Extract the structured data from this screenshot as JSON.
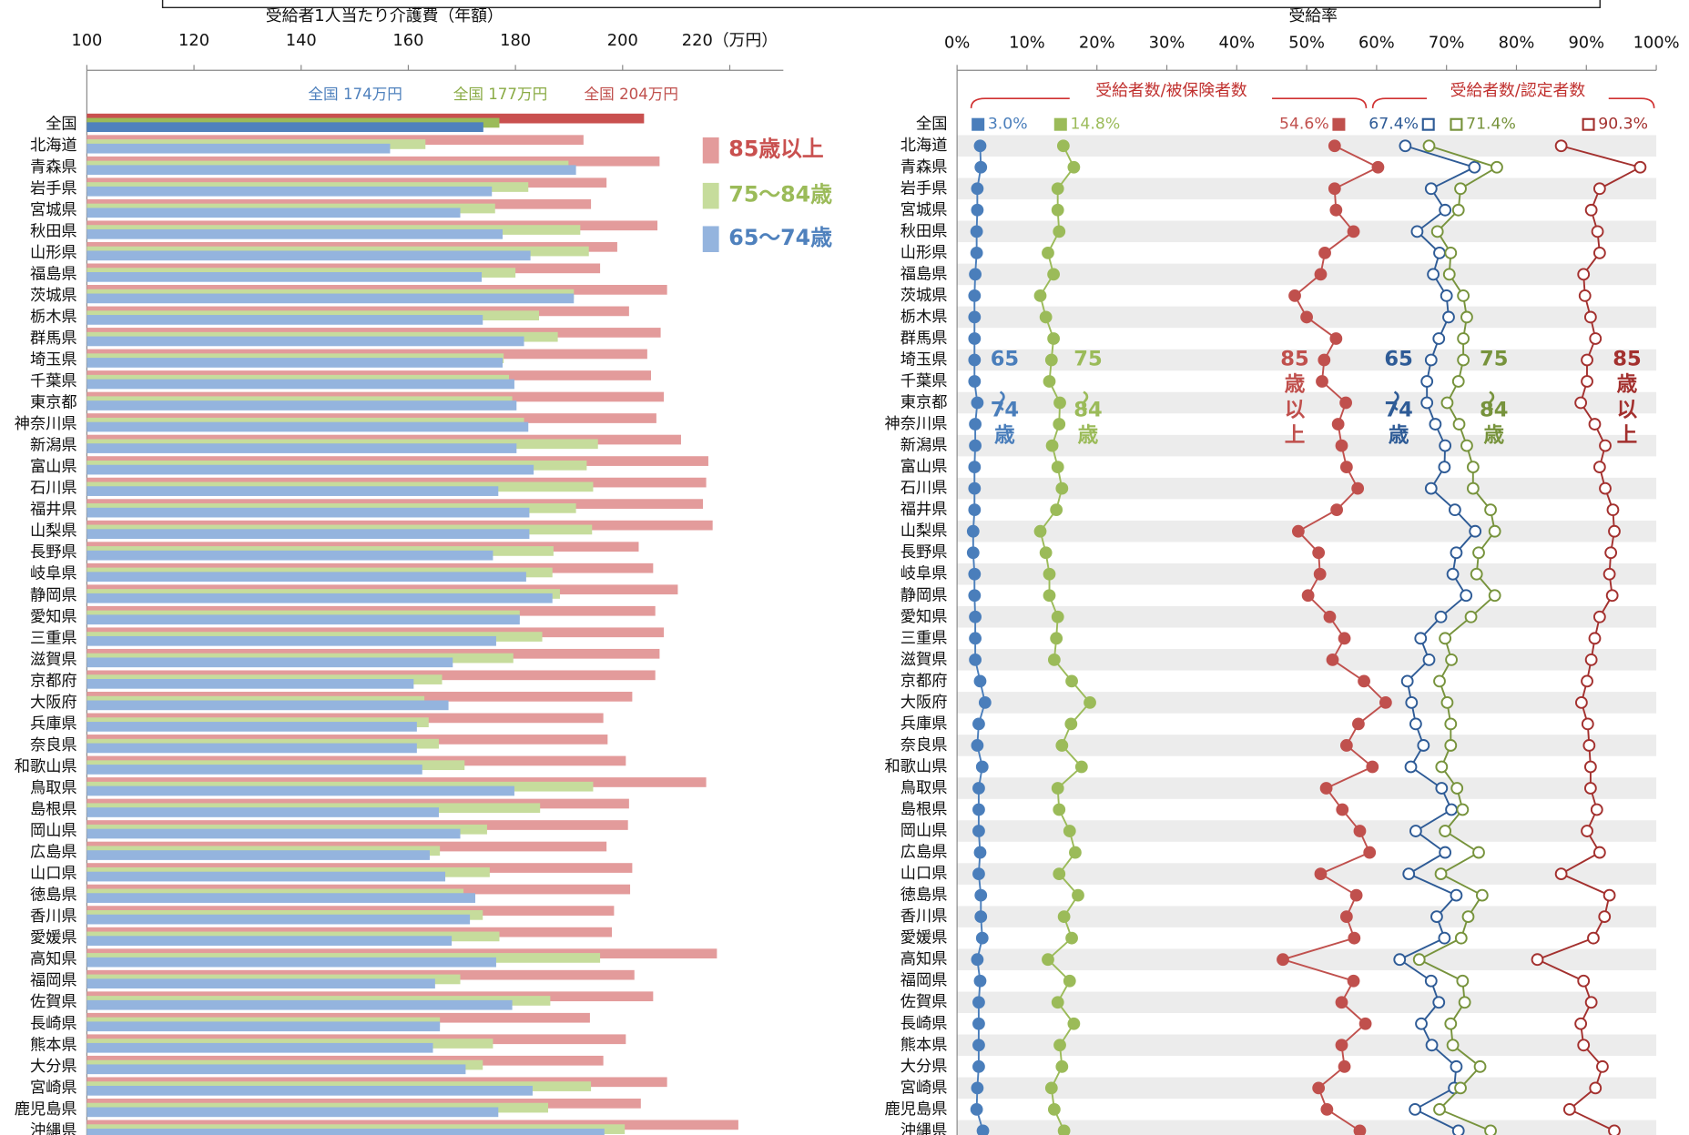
{
  "chart_data": [
    {
      "type": "bar",
      "orientation": "horizontal",
      "title": "受給者1人当たり介護費（年額）",
      "categories": [
        "全国",
        "北海道",
        "青森県",
        "岩手県",
        "宮城県",
        "秋田県",
        "山形県",
        "福島県",
        "茨城県",
        "栃木県",
        "群馬県",
        "埼玉県",
        "千葉県",
        "東京都",
        "神奈川県",
        "新潟県",
        "富山県",
        "石川県",
        "福井県",
        "山梨県",
        "長野県",
        "岐阜県",
        "静岡県",
        "愛知県",
        "三重県",
        "滋賀県",
        "京都府",
        "大阪府",
        "兵庫県",
        "奈良県",
        "和歌山県",
        "鳥取県",
        "島根県",
        "岡山県",
        "広島県",
        "山口県",
        "徳島県",
        "香川県",
        "愛媛県",
        "高知県",
        "福岡県",
        "佐賀県",
        "長崎県",
        "熊本県",
        "大分県",
        "宮崎県",
        "鹿児島県",
        "沖縄県"
      ],
      "xlim": [
        100,
        230
      ],
      "xticks": [
        100,
        120,
        140,
        160,
        180,
        200,
        {
          "value": 220,
          "label": "220（万円）"
        }
      ],
      "legend": "right",
      "series": [
        {
          "name": "85歳以上",
          "color": "#e39b9b",
          "national_color": "#c9504f",
          "values": [
            204,
            192.7,
            206.9,
            197,
            194.1,
            206.5,
            199,
            195.8,
            208.3,
            201.2,
            207.1,
            204.6,
            205.3,
            207.7,
            206.3,
            210.9,
            216,
            215.6,
            215,
            216.8,
            203,
            205.7,
            210.3,
            206.1,
            207.7,
            206.9,
            206.1,
            201.8,
            196.4,
            197.2,
            200.6,
            215.6,
            201.2,
            201,
            197,
            201.8,
            201.4,
            198.4,
            198,
            217.6,
            202.2,
            205.7,
            193.9,
            200.6,
            196.4,
            208.3,
            203.4,
            221.6
          ]
        },
        {
          "name": "75～84歳",
          "color": "#c6dc9c",
          "national_color": "#9bbb59",
          "values": [
            177,
            163.2,
            189.9,
            182.4,
            176.2,
            192.1,
            193.7,
            180,
            190.9,
            184.4,
            187.9,
            177.8,
            178.8,
            179.4,
            181.6,
            195.4,
            193.3,
            194.5,
            191.3,
            194.3,
            187.1,
            186.9,
            188.3,
            180.8,
            185,
            179.6,
            166.3,
            163,
            163.8,
            165.7,
            170.5,
            194.5,
            184.6,
            174.7,
            165.9,
            175.2,
            170.3,
            173.9,
            177,
            195.8,
            169.7,
            186.5,
            165.9,
            175.8,
            173.9,
            194.1,
            186.1,
            200.4
          ]
        },
        {
          "name": "65～74歳",
          "color": "#94b4de",
          "national_color": "#4f81bd",
          "values": [
            174,
            156.6,
            191.3,
            175.6,
            169.7,
            177.6,
            182.8,
            173.7,
            190.9,
            173.9,
            181.6,
            177.6,
            179.8,
            180.2,
            182.4,
            180.2,
            183.4,
            176.8,
            182.6,
            182.6,
            175.8,
            182,
            186.9,
            180.8,
            176.4,
            168.3,
            161,
            167.5,
            161.6,
            161.6,
            162.6,
            179.8,
            165.7,
            169.7,
            164,
            166.9,
            172.5,
            171.5,
            168.1,
            176.4,
            165,
            179.4,
            165.9,
            164.6,
            170.7,
            183.2,
            176.8,
            196.6
          ]
        }
      ],
      "annotations": [
        {
          "text": "全国 174万円",
          "color": "#4f81bd"
        },
        {
          "text": "全国 177万円",
          "color": "#8aab45"
        },
        {
          "text": "全国 204万円",
          "color": "#c0504d"
        }
      ]
    },
    {
      "type": "line",
      "title": "受給率",
      "categories": [
        "全国",
        "北海道",
        "青森県",
        "岩手県",
        "宮城県",
        "秋田県",
        "山形県",
        "福島県",
        "茨城県",
        "栃木県",
        "群馬県",
        "埼玉県",
        "千葉県",
        "東京都",
        "神奈川県",
        "新潟県",
        "富山県",
        "石川県",
        "福井県",
        "山梨県",
        "長野県",
        "岐阜県",
        "静岡県",
        "愛知県",
        "三重県",
        "滋賀県",
        "京都府",
        "大阪府",
        "兵庫県",
        "奈良県",
        "和歌山県",
        "鳥取県",
        "島根県",
        "岡山県",
        "広島県",
        "山口県",
        "徳島県",
        "香川県",
        "愛媛県",
        "高知県",
        "福岡県",
        "佐賀県",
        "長崎県",
        "熊本県",
        "大分県",
        "宮崎県",
        "鹿児島県",
        "沖縄県"
      ],
      "xlim": [
        0,
        100
      ],
      "xticks": [
        {
          "value": 0,
          "label": "0%"
        },
        {
          "value": 10,
          "label": "10%"
        },
        {
          "value": 20,
          "label": "20%"
        },
        {
          "value": 30,
          "label": "30%"
        },
        {
          "value": 40,
          "label": "40%"
        },
        {
          "value": 50,
          "label": "50%"
        },
        {
          "value": 60,
          "label": "60%"
        },
        {
          "value": 70,
          "label": "70%"
        },
        {
          "value": 80,
          "label": "80%"
        },
        {
          "value": 90,
          "label": "90%"
        },
        {
          "value": 100,
          "label": "100%"
        }
      ],
      "groups": [
        "受給者数/被保険者数",
        "受給者数/認定者数"
      ],
      "series": [
        {
          "name": "65～74歳",
          "group": 0,
          "color": "#4a7ebb",
          "marker": "filled",
          "values": [
            3.0,
            3.3,
            3.4,
            2.9,
            2.9,
            2.8,
            2.8,
            2.6,
            2.5,
            2.5,
            2.5,
            2.5,
            2.5,
            2.9,
            2.6,
            2.6,
            2.5,
            2.5,
            2.5,
            2.3,
            2.3,
            2.5,
            2.5,
            2.6,
            2.6,
            2.6,
            3.3,
            4.0,
            3.1,
            2.9,
            3.6,
            3.1,
            3.1,
            3.1,
            3.3,
            3.1,
            3.4,
            3.4,
            3.6,
            2.9,
            3.3,
            3.1,
            3.1,
            3.1,
            3.1,
            2.9,
            2.8,
            3.7
          ],
          "value_labels": [
            "3.0%",
            null,
            null,
            null,
            null,
            null,
            null,
            null,
            null,
            null,
            null,
            null,
            null,
            null,
            null,
            null,
            null,
            null,
            null,
            null,
            null,
            null,
            null,
            null,
            null,
            null,
            null,
            null,
            null,
            null,
            null,
            null,
            null,
            null,
            null,
            null,
            null,
            null,
            null,
            null,
            null,
            null,
            null,
            null,
            null,
            null,
            null,
            null
          ]
        },
        {
          "name": "75～84歳",
          "group": 0,
          "color": "#9bbb59",
          "marker": "filled",
          "values": [
            14.8,
            15.2,
            16.7,
            14.4,
            14.4,
            14.6,
            13.0,
            13.8,
            11.9,
            12.7,
            13.8,
            13.5,
            13.2,
            14.7,
            14.6,
            13.6,
            14.4,
            15.0,
            14.2,
            11.9,
            12.7,
            13.2,
            13.2,
            14.4,
            14.2,
            13.9,
            16.4,
            19.0,
            16.3,
            15.0,
            17.8,
            14.4,
            14.6,
            16.1,
            16.9,
            14.6,
            17.3,
            15.3,
            16.4,
            13.0,
            16.1,
            14.4,
            16.7,
            14.7,
            15.0,
            13.5,
            13.9,
            15.3
          ],
          "value_labels": [
            "14.8%",
            null,
            null,
            null,
            null,
            null,
            null,
            null,
            null,
            null,
            null,
            null,
            null,
            null,
            null,
            null,
            null,
            null,
            null,
            null,
            null,
            null,
            null,
            null,
            null,
            null,
            null,
            null,
            null,
            null,
            null,
            null,
            null,
            null,
            null,
            null,
            null,
            null,
            null,
            null,
            null,
            null,
            null,
            null,
            null,
            null,
            null,
            null
          ]
        },
        {
          "name": "85歳以上",
          "group": 0,
          "color": "#c0504d",
          "marker": "filled",
          "values": [
            54.6,
            54.0,
            60.2,
            54.0,
            54.2,
            56.7,
            52.6,
            52.0,
            48.3,
            50.0,
            54.2,
            52.5,
            52.2,
            55.6,
            54.5,
            55.0,
            55.7,
            57.3,
            54.3,
            48.8,
            51.7,
            51.9,
            50.2,
            53.3,
            55.4,
            53.7,
            58.2,
            61.3,
            57.4,
            55.7,
            59.4,
            52.8,
            55.1,
            57.6,
            59.0,
            52.0,
            57.1,
            55.7,
            56.8,
            46.6,
            56.7,
            55.0,
            58.4,
            55.0,
            55.4,
            51.7,
            52.9,
            57.6
          ],
          "value_labels": [
            "54.6%",
            null,
            null,
            null,
            null,
            null,
            null,
            null,
            null,
            null,
            null,
            null,
            null,
            null,
            null,
            null,
            null,
            null,
            null,
            null,
            null,
            null,
            null,
            null,
            null,
            null,
            null,
            null,
            null,
            null,
            null,
            null,
            null,
            null,
            null,
            null,
            null,
            null,
            null,
            null,
            null,
            null,
            null,
            null,
            null,
            null,
            null,
            null
          ]
        },
        {
          "name": "65～74歳",
          "group": 1,
          "color": "#2e5b96",
          "marker": "open",
          "values": [
            67.4,
            64.1,
            74.0,
            67.8,
            69.8,
            65.8,
            69.0,
            68.1,
            70.0,
            70.3,
            68.9,
            67.8,
            67.2,
            67.2,
            68.4,
            69.8,
            69.7,
            67.8,
            71.2,
            74.1,
            71.4,
            70.9,
            72.8,
            69.2,
            66.3,
            67.5,
            64.4,
            65.0,
            65.6,
            66.7,
            64.9,
            69.3,
            70.7,
            65.6,
            69.8,
            64.6,
            71.4,
            68.6,
            69.7,
            63.3,
            67.8,
            68.9,
            66.4,
            67.9,
            71.4,
            71.1,
            65.5,
            71.7
          ],
          "value_labels": [
            "67.4%",
            null,
            null,
            null,
            null,
            null,
            null,
            null,
            null,
            null,
            null,
            null,
            null,
            null,
            null,
            null,
            null,
            null,
            null,
            null,
            null,
            null,
            null,
            null,
            null,
            null,
            null,
            null,
            null,
            null,
            null,
            null,
            null,
            null,
            null,
            null,
            null,
            null,
            null,
            null,
            null,
            null,
            null,
            null,
            null,
            null,
            null,
            null
          ]
        },
        {
          "name": "75～84歳",
          "group": 1,
          "color": "#77933c",
          "marker": "open",
          "values": [
            71.4,
            67.5,
            77.2,
            72.0,
            71.7,
            68.7,
            70.6,
            70.4,
            72.4,
            72.9,
            72.4,
            72.4,
            71.7,
            70.1,
            71.8,
            72.9,
            73.8,
            73.8,
            76.3,
            76.9,
            74.6,
            74.3,
            76.9,
            73.5,
            69.8,
            70.7,
            69.0,
            70.1,
            70.6,
            70.6,
            69.3,
            71.5,
            72.3,
            69.8,
            74.6,
            69.2,
            75.1,
            73.1,
            72.1,
            66.1,
            72.3,
            72.6,
            70.6,
            70.9,
            74.8,
            72.0,
            69.0,
            76.3
          ],
          "value_labels": [
            "71.4%",
            null,
            null,
            null,
            null,
            null,
            null,
            null,
            null,
            null,
            null,
            null,
            null,
            null,
            null,
            null,
            null,
            null,
            null,
            null,
            null,
            null,
            null,
            null,
            null,
            null,
            null,
            null,
            null,
            null,
            null,
            null,
            null,
            null,
            null,
            null,
            null,
            null,
            null,
            null,
            null,
            null,
            null,
            null,
            null,
            null,
            null,
            null
          ]
        },
        {
          "name": "85歳以上",
          "group": 1,
          "color": "#a3302e",
          "marker": "open",
          "values": [
            90.3,
            86.4,
            97.7,
            91.9,
            90.7,
            91.6,
            91.9,
            89.6,
            89.8,
            90.6,
            91.3,
            90.1,
            90.1,
            89.2,
            91.2,
            92.7,
            91.9,
            92.7,
            93.8,
            94.0,
            93.5,
            93.3,
            93.7,
            91.9,
            91.2,
            90.7,
            90.1,
            89.3,
            90.2,
            90.4,
            90.6,
            90.6,
            91.5,
            90.1,
            91.9,
            86.4,
            93.3,
            92.6,
            91.0,
            83.0,
            89.6,
            90.7,
            89.2,
            89.6,
            92.3,
            91.3,
            87.6,
            94.0
          ],
          "value_labels": [
            "90.3%",
            null,
            null,
            null,
            null,
            null,
            null,
            null,
            null,
            null,
            null,
            null,
            null,
            null,
            null,
            null,
            null,
            null,
            null,
            null,
            null,
            null,
            null,
            null,
            null,
            null,
            null,
            null,
            null,
            null,
            null,
            null,
            null,
            null,
            null,
            null,
            null,
            null,
            null,
            null,
            null,
            null,
            null,
            null,
            null,
            null,
            null,
            null
          ]
        }
      ]
    }
  ]
}
